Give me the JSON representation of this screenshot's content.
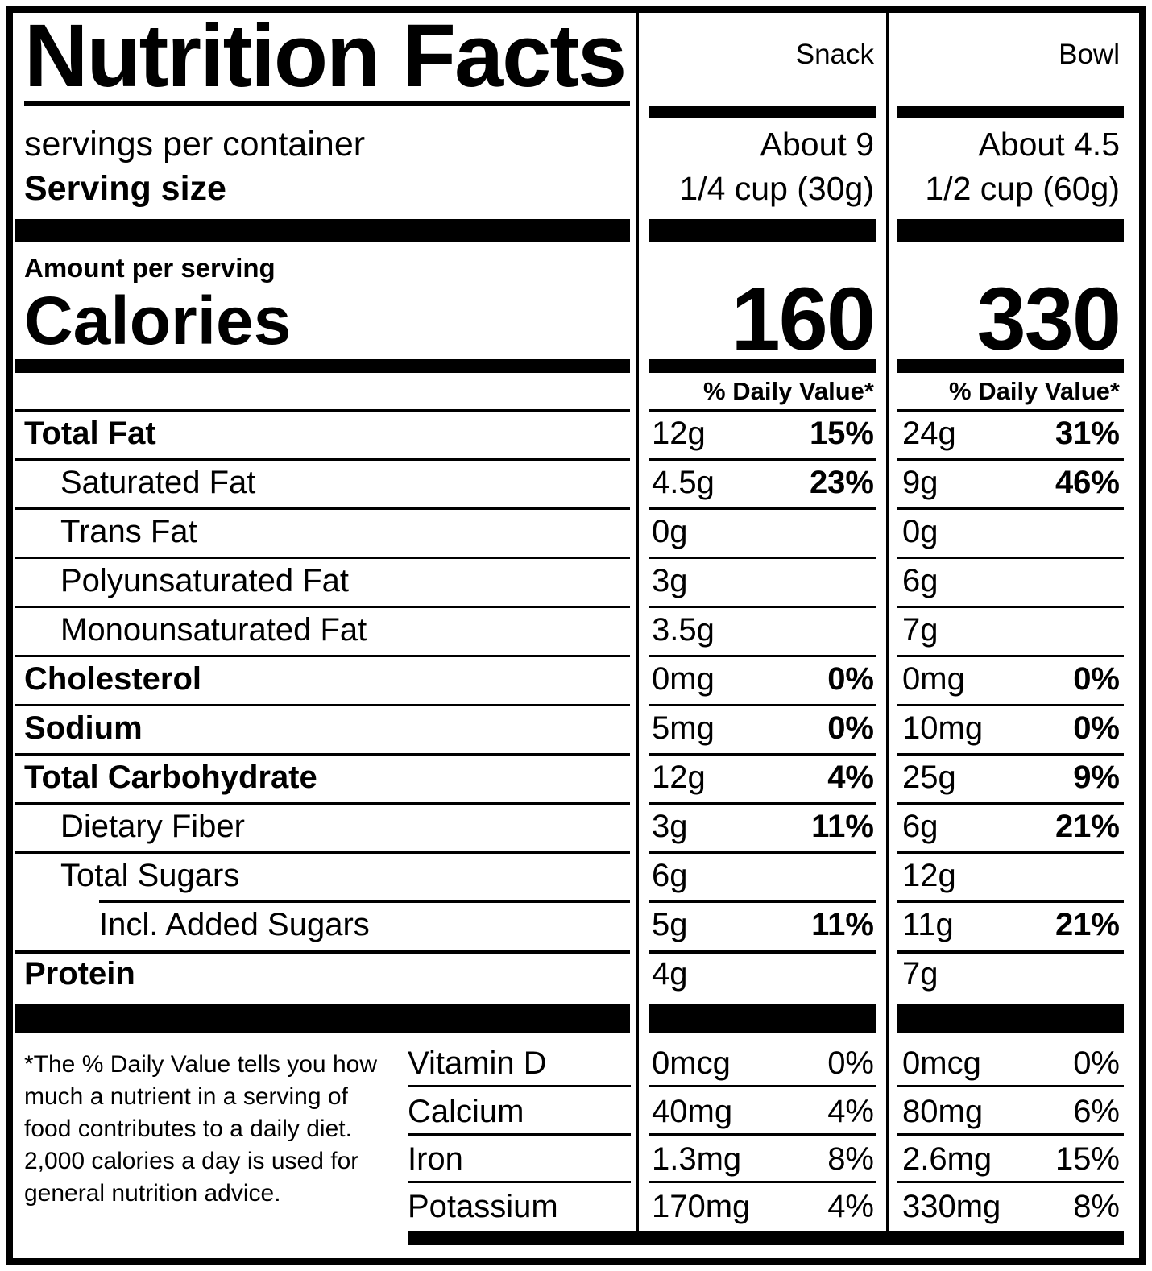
{
  "title": "Nutrition Facts",
  "serving": {
    "servings_label": "servings per container",
    "size_label": "Serving size"
  },
  "amount_label": "Amount per serving",
  "calories_label": "Calories",
  "dv_header": "% Daily Value*",
  "columns": [
    {
      "name": "Snack",
      "servings": "About 9",
      "size": "1/4 cup (30g)",
      "calories": "160"
    },
    {
      "name": "Bowl",
      "servings": "About 4.5",
      "size": "1/2 cup (60g)",
      "calories": "330"
    }
  ],
  "nutrients": [
    {
      "label": "Total Fat",
      "snack": {
        "amount": "12g",
        "dv": "15%"
      },
      "bowl": {
        "amount": "24g",
        "dv": "31%"
      }
    },
    {
      "label": "Saturated Fat",
      "snack": {
        "amount": "4.5g",
        "dv": "23%"
      },
      "bowl": {
        "amount": "9g",
        "dv": "46%"
      }
    },
    {
      "label": "Trans Fat",
      "snack": {
        "amount": "0g",
        "dv": ""
      },
      "bowl": {
        "amount": "0g",
        "dv": ""
      }
    },
    {
      "label": "Polyunsaturated Fat",
      "snack": {
        "amount": "3g",
        "dv": ""
      },
      "bowl": {
        "amount": "6g",
        "dv": ""
      }
    },
    {
      "label": "Monounsaturated Fat",
      "snack": {
        "amount": "3.5g",
        "dv": ""
      },
      "bowl": {
        "amount": "7g",
        "dv": ""
      }
    },
    {
      "label": "Cholesterol",
      "snack": {
        "amount": "0mg",
        "dv": "0%"
      },
      "bowl": {
        "amount": "0mg",
        "dv": "0%"
      }
    },
    {
      "label": "Sodium",
      "snack": {
        "amount": "5mg",
        "dv": "0%"
      },
      "bowl": {
        "amount": "10mg",
        "dv": "0%"
      }
    },
    {
      "label": "Total Carbohydrate",
      "snack": {
        "amount": "12g",
        "dv": "4%"
      },
      "bowl": {
        "amount": "25g",
        "dv": "9%"
      }
    },
    {
      "label": "Dietary Fiber",
      "snack": {
        "amount": "3g",
        "dv": "11%"
      },
      "bowl": {
        "amount": "6g",
        "dv": "21%"
      }
    },
    {
      "label": "Total Sugars",
      "snack": {
        "amount": "6g",
        "dv": ""
      },
      "bowl": {
        "amount": "12g",
        "dv": ""
      }
    },
    {
      "label": "Incl. Added Sugars",
      "snack": {
        "amount": "5g",
        "dv": "11%"
      },
      "bowl": {
        "amount": "11g",
        "dv": "21%"
      }
    },
    {
      "label": "Protein",
      "snack": {
        "amount": "4g",
        "dv": ""
      },
      "bowl": {
        "amount": "7g",
        "dv": ""
      }
    }
  ],
  "vitamins": [
    {
      "label": "Vitamin D",
      "snack": {
        "amount": "0mcg",
        "dv": "0%"
      },
      "bowl": {
        "amount": "0mcg",
        "dv": "0%"
      }
    },
    {
      "label": "Calcium",
      "snack": {
        "amount": "40mg",
        "dv": "4%"
      },
      "bowl": {
        "amount": "80mg",
        "dv": "6%"
      }
    },
    {
      "label": "Iron",
      "snack": {
        "amount": "1.3mg",
        "dv": "8%"
      },
      "bowl": {
        "amount": "2.6mg",
        "dv": "15%"
      }
    },
    {
      "label": "Potassium",
      "snack": {
        "amount": "170mg",
        "dv": "4%"
      },
      "bowl": {
        "amount": "330mg",
        "dv": "8%"
      }
    }
  ],
  "footnote": "*The % Daily Value tells you how much a nutrient in a serving of food contributes to a daily diet. 2,000 calories a day is used for general nutrition advice.",
  "colors": {
    "ink": "#000000",
    "paper": "#ffffff"
  }
}
